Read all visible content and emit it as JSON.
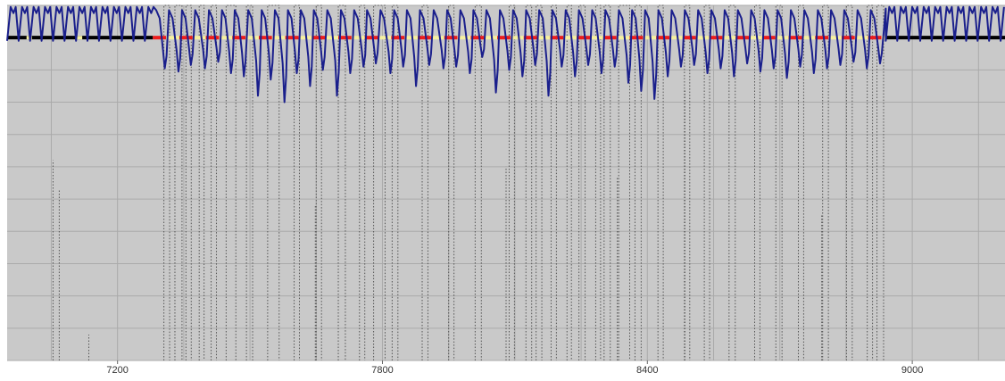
{
  "chart_data": {
    "type": "line",
    "title": "",
    "xlabel": "",
    "ylabel": "",
    "xlim": [
      6950,
      9210
    ],
    "ylim": [
      -10,
      1
    ],
    "x_ticks": [
      7200,
      7800,
      8400,
      9000
    ],
    "x_tick_labels": [
      "7200",
      "7800",
      "8400",
      "9000"
    ],
    "grid": true,
    "legend": "none",
    "colors": {
      "plot_background": "#c9c9c9",
      "grid": "#aaaaaa",
      "signal": "#1a1f8c",
      "baseline": "#000000",
      "highlight_red": "#ee1c1c",
      "highlight_yellow": "#f5f0a0",
      "trace": "#555555"
    },
    "active_region": [
      7280,
      8940
    ],
    "baseline_y": 0,
    "series": [
      {
        "key": "signal",
        "style": "solid-navy",
        "idle_period": 26,
        "idle_low": -0.1,
        "idle_high": 0.95,
        "active_cycles": [
          [
            7307,
            -0.95
          ],
          [
            7338,
            -1.05
          ],
          [
            7366,
            -0.85
          ],
          [
            7398,
            -0.95
          ],
          [
            7428,
            -0.75
          ],
          [
            7457,
            -1.1
          ],
          [
            7486,
            -1.2
          ],
          [
            7518,
            -1.8
          ],
          [
            7547,
            -1.3
          ],
          [
            7578,
            -2.0
          ],
          [
            7606,
            -1.1
          ],
          [
            7636,
            -1.5
          ],
          [
            7665,
            -1.0
          ],
          [
            7697,
            -1.8
          ],
          [
            7727,
            -1.1
          ],
          [
            7757,
            -0.9
          ],
          [
            7785,
            -0.8
          ],
          [
            7818,
            -1.1
          ],
          [
            7847,
            -0.9
          ],
          [
            7876,
            -1.5
          ],
          [
            7906,
            -0.85
          ],
          [
            7938,
            -0.95
          ],
          [
            7967,
            -0.9
          ],
          [
            7998,
            -1.1
          ],
          [
            8026,
            -0.6
          ],
          [
            8057,
            -1.7
          ],
          [
            8087,
            -1.0
          ],
          [
            8117,
            -1.2
          ],
          [
            8146,
            -0.85
          ],
          [
            8176,
            -1.8
          ],
          [
            8206,
            -0.9
          ],
          [
            8236,
            -1.2
          ],
          [
            8266,
            -0.85
          ],
          [
            8296,
            -1.1
          ],
          [
            8326,
            -0.9
          ],
          [
            8357,
            -1.4
          ],
          [
            8386,
            -1.65
          ],
          [
            8416,
            -1.9
          ],
          [
            8446,
            -1.2
          ],
          [
            8476,
            -0.9
          ],
          [
            8506,
            -0.85
          ],
          [
            8536,
            -1.1
          ],
          [
            8566,
            -0.95
          ],
          [
            8596,
            -1.2
          ],
          [
            8626,
            -0.8
          ],
          [
            8656,
            -1.05
          ],
          [
            8686,
            -0.95
          ],
          [
            8716,
            -1.25
          ],
          [
            8746,
            -0.9
          ],
          [
            8777,
            -1.1
          ],
          [
            8807,
            -0.95
          ],
          [
            8837,
            -0.85
          ],
          [
            8867,
            -0.75
          ],
          [
            8897,
            -0.95
          ],
          [
            8927,
            -0.8
          ]
        ]
      },
      {
        "key": "trace",
        "style": "dotted-gray",
        "top": 1,
        "bottom": -10,
        "pulses": [
          [
            7305,
            7318
          ],
          [
            7330,
            7346
          ],
          [
            7355,
            7367
          ],
          [
            7385,
            7396
          ],
          [
            7412,
            7424
          ],
          [
            7446,
            7468
          ],
          [
            7492,
            7506
          ],
          [
            7540,
            7566
          ],
          [
            7600,
            7612
          ],
          [
            7650,
            7662
          ],
          [
            7700,
            7716
          ],
          [
            7748,
            7760
          ],
          [
            7780,
            7806
          ],
          [
            7822,
            7835
          ],
          [
            7890,
            7903
          ],
          [
            7950,
            7962
          ],
          [
            8010,
            8024
          ],
          [
            8087,
            8099
          ],
          [
            8125,
            8138
          ],
          [
            8148,
            8161
          ],
          [
            8182,
            8194
          ],
          [
            8218,
            8228
          ],
          [
            8245,
            8259
          ],
          [
            8283,
            8294
          ],
          [
            8302,
            8316
          ],
          [
            8335,
            8360
          ],
          [
            8372,
            8386
          ],
          [
            8424,
            8436
          ],
          [
            8484,
            8496
          ],
          [
            8529,
            8541
          ],
          [
            8585,
            8599
          ],
          [
            8643,
            8655
          ],
          [
            8691,
            8705
          ],
          [
            8742,
            8754
          ],
          [
            8797,
            8810
          ],
          [
            8851,
            8864
          ],
          [
            8898,
            8910
          ],
          [
            8920,
            8935
          ]
        ],
        "spikes": [
          [
            7054,
            -3.8
          ],
          [
            7068,
            -4.7
          ],
          [
            7135,
            -9.2
          ],
          [
            7648,
            -5.2
          ],
          [
            8080,
            -4.0
          ],
          [
            8332,
            -4.3
          ],
          [
            8485,
            -1.6
          ],
          [
            8795,
            -5.5
          ]
        ]
      }
    ],
    "baseline_segments": [
      {
        "from": 6950,
        "to": 7280,
        "color": "baseline",
        "marks": [
          7000,
          7114,
          9050,
          9150
        ]
      },
      {
        "from": 7280,
        "to": 8940,
        "pattern": [
          "highlight_red",
          "highlight_yellow"
        ],
        "segment_length": 30
      },
      {
        "from": 8940,
        "to": 9210,
        "color": "baseline"
      }
    ]
  }
}
